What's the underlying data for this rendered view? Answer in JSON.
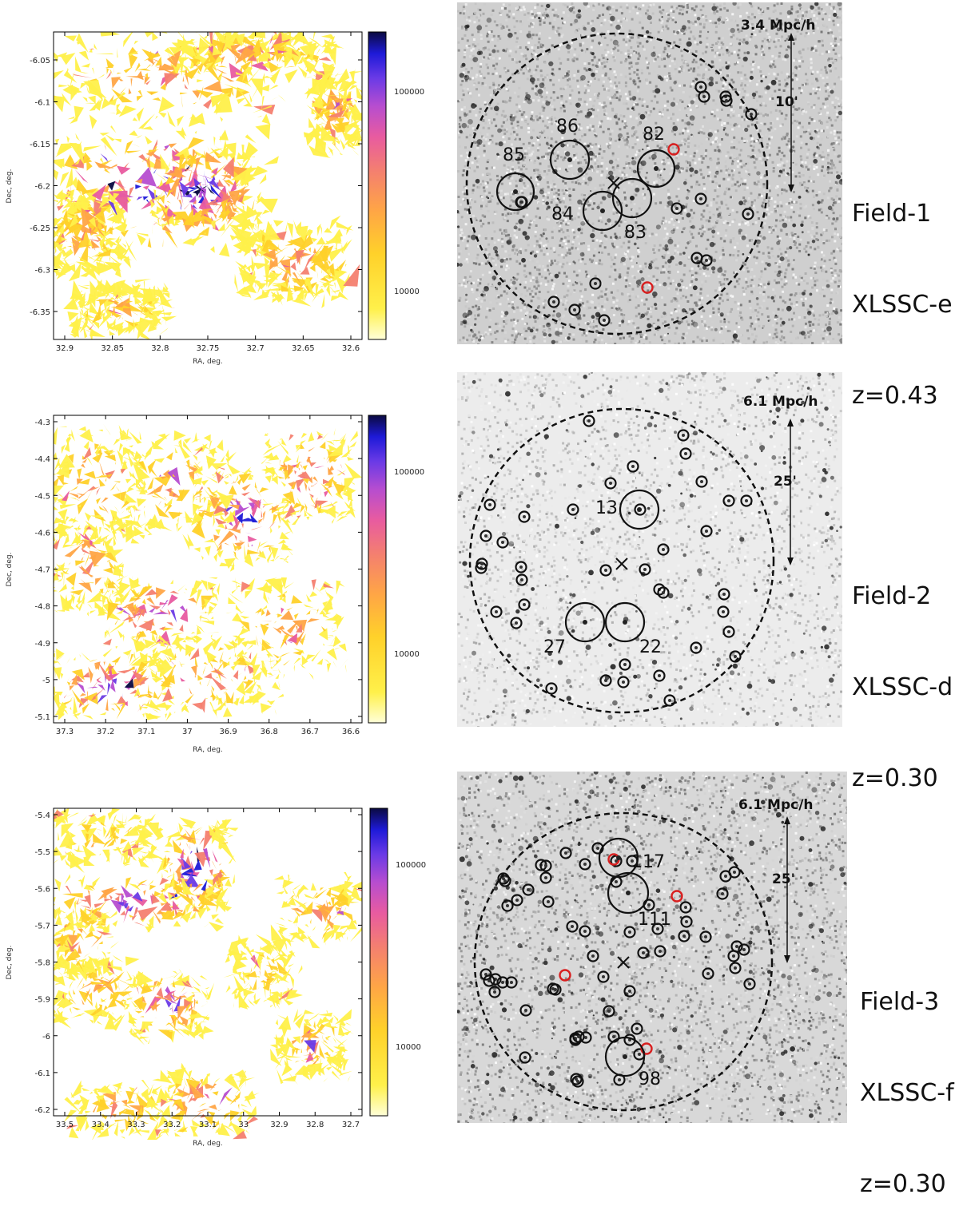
{
  "panels": [
    {
      "id": "field-1",
      "map": {
        "xlabel": "RA, deg.",
        "ylabel": "Dec, deg.",
        "xticks": [
          "32.9",
          "32.85",
          "32.8",
          "32.75",
          "32.7",
          "32.65",
          "32.6"
        ],
        "yticks": [
          "-6.05",
          "-6.1",
          "-6.15",
          "-6.2",
          "-6.25",
          "-6.3",
          "-6.35"
        ],
        "colorbar_ticks": [
          "100000",
          "10000"
        ]
      },
      "xray": {
        "scale_phys": "3.4 Mpc/h",
        "scale_arcmin": "10'",
        "clusters": [
          {
            "label": "85"
          },
          {
            "label": "86"
          },
          {
            "label": "82"
          },
          {
            "label": "84"
          },
          {
            "label": "83"
          }
        ]
      },
      "label": {
        "field": "Field-1",
        "cluster": "XLSSC-e",
        "redshift": "z=0.43"
      }
    },
    {
      "id": "field-2",
      "map": {
        "xlabel": "RA, deg.",
        "ylabel": "Dec, deg.",
        "xticks": [
          "37.3",
          "37.2",
          "37.1",
          "37",
          "36.9",
          "36.8",
          "36.7",
          "36.6"
        ],
        "yticks": [
          "-4.3",
          "-4.4",
          "-4.5",
          "-4.6",
          "-4.7",
          "-4.8",
          "-4.9",
          "-5",
          "-5.1"
        ],
        "colorbar_ticks": [
          "100000",
          "10000"
        ]
      },
      "xray": {
        "scale_phys": "6.1 Mpc/h",
        "scale_arcmin": "25'",
        "clusters": [
          {
            "label": "13"
          },
          {
            "label": "27"
          },
          {
            "label": "22"
          }
        ]
      },
      "label": {
        "field": "Field-2",
        "cluster": "XLSSC-d",
        "redshift": "z=0.30"
      }
    },
    {
      "id": "field-3",
      "map": {
        "xlabel": "RA, deg.",
        "ylabel": "Dec, deg.",
        "xticks": [
          "33.5",
          "33.4",
          "33.3",
          "33.2",
          "33.1",
          "33",
          "32.9",
          "32.8",
          "32.7"
        ],
        "yticks": [
          "-5.4",
          "-5.5",
          "-5.6",
          "-5.7",
          "-5.8",
          "-5.9",
          "-6",
          "-6.1",
          "-6.2"
        ],
        "colorbar_ticks": [
          "100000",
          "10000"
        ]
      },
      "xray": {
        "scale_phys": "6.1 Mpc/h",
        "scale_arcmin": "25'",
        "clusters": [
          {
            "label": "117"
          },
          {
            "label": "111"
          },
          {
            "label": "98"
          }
        ]
      },
      "label": {
        "field": "Field-3",
        "cluster": "XLSSC-f",
        "redshift": "z=0.30"
      }
    }
  ],
  "colors": {
    "cmap": [
      "#ffffd8",
      "#fff04a",
      "#ffd12a",
      "#ffa546",
      "#f47f70",
      "#e85ba0",
      "#b64dd0",
      "#6a3ae6",
      "#1e1ad8",
      "#0a0a40"
    ],
    "agn_marker_red": "#d82020",
    "marker_black": "#111111"
  }
}
